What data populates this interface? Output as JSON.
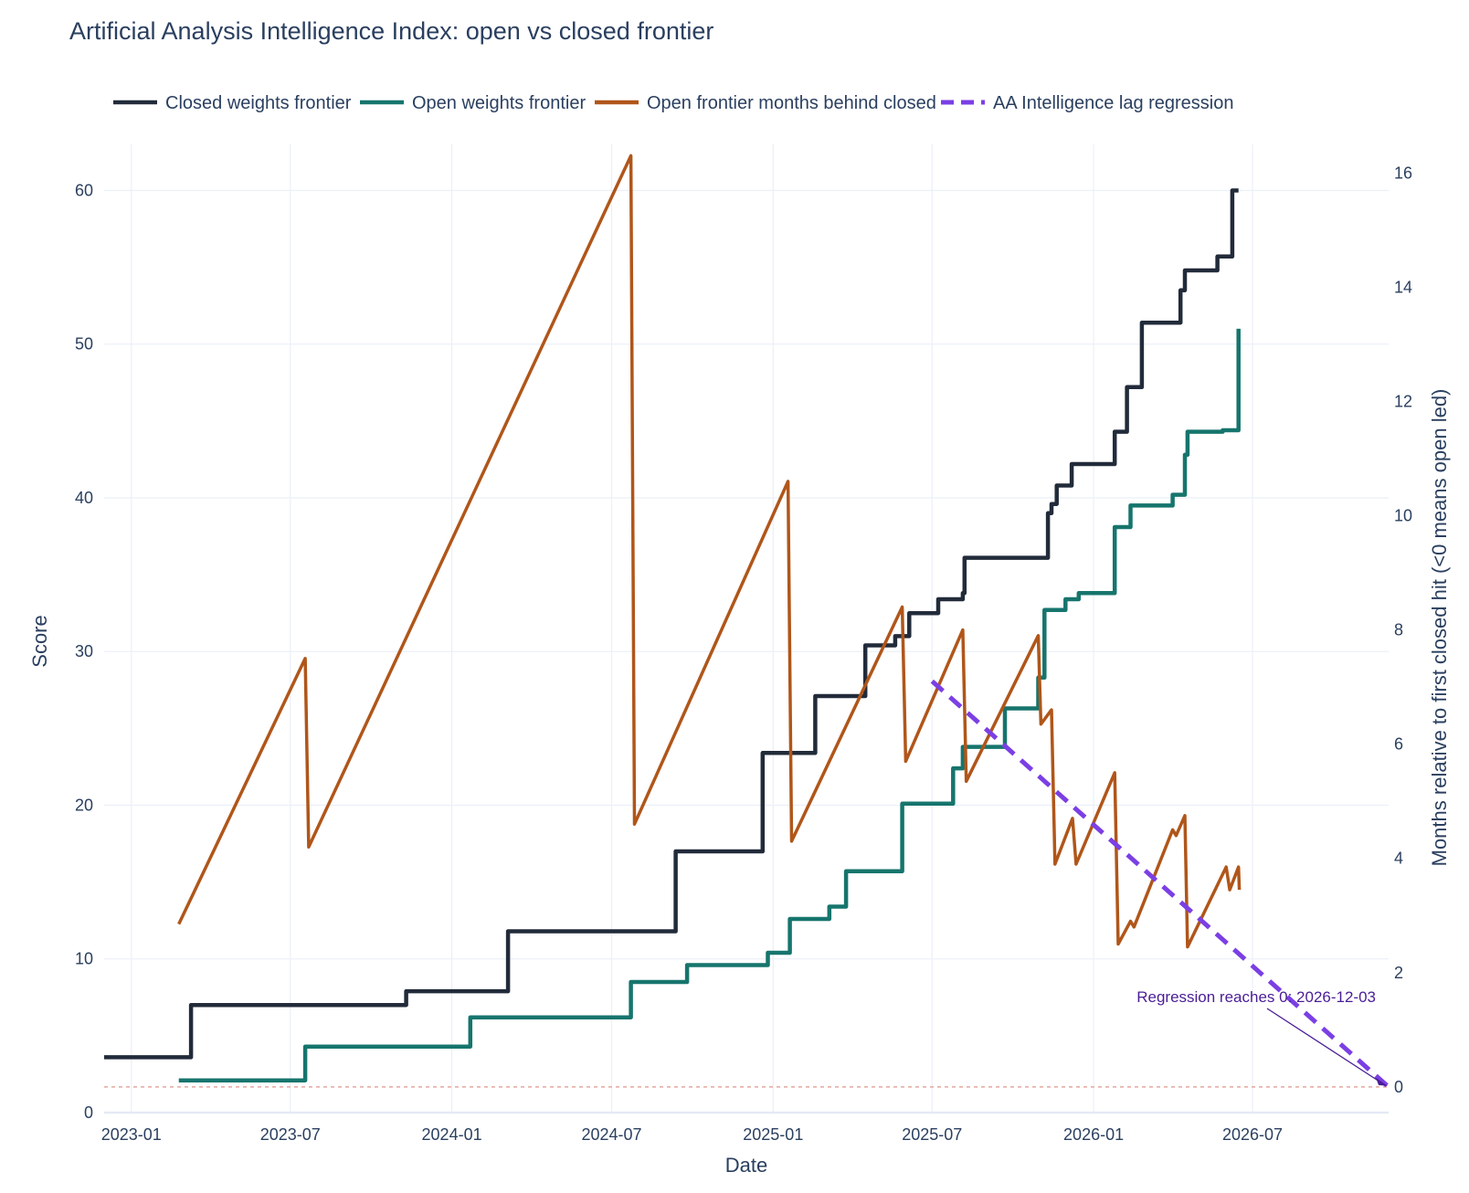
{
  "chart_data": {
    "type": "line",
    "title": "Artificial Analysis Intelligence Index: open vs closed frontier",
    "xlabel": "Date",
    "ylabel": "Score",
    "y2label": "Months relative to first closed hit (<0 means open led)",
    "xrange": [
      "2022-12-01",
      "2026-12-03"
    ],
    "ylim": [
      0,
      63
    ],
    "y2lim": [
      -0.45,
      16.5
    ],
    "x_ticks": [
      "2023-01",
      "2023-07",
      "2024-01",
      "2024-07",
      "2025-01",
      "2025-07",
      "2026-01",
      "2026-07"
    ],
    "y_ticks": [
      0,
      10,
      20,
      30,
      40,
      50,
      60
    ],
    "y2_ticks": [
      0,
      2,
      4,
      6,
      8,
      10,
      12,
      14,
      16
    ],
    "grid": true,
    "legend": "top",
    "series": [
      {
        "name": "Closed weights frontier",
        "axis": "left",
        "shape": "step",
        "color": "#222b3a",
        "points": [
          [
            "2022-12-01",
            3.6
          ],
          [
            "2023-03-10",
            3.6
          ],
          [
            "2023-03-10",
            7.0
          ],
          [
            "2023-11-10",
            7.0
          ],
          [
            "2023-11-10",
            7.9
          ],
          [
            "2024-03-05",
            7.9
          ],
          [
            "2024-03-05",
            11.8
          ],
          [
            "2024-09-12",
            11.8
          ],
          [
            "2024-09-12",
            17.0
          ],
          [
            "2024-12-20",
            17.0
          ],
          [
            "2024-12-20",
            23.4
          ],
          [
            "2025-02-18",
            23.4
          ],
          [
            "2025-02-18",
            27.1
          ],
          [
            "2025-04-16",
            27.1
          ],
          [
            "2025-04-16",
            30.4
          ],
          [
            "2025-05-20",
            30.4
          ],
          [
            "2025-05-20",
            31.0
          ],
          [
            "2025-06-05",
            31.0
          ],
          [
            "2025-06-05",
            32.5
          ],
          [
            "2025-07-08",
            32.5
          ],
          [
            "2025-07-08",
            33.4
          ],
          [
            "2025-08-05",
            33.4
          ],
          [
            "2025-08-05",
            33.8
          ],
          [
            "2025-08-07",
            33.8
          ],
          [
            "2025-08-07",
            36.1
          ],
          [
            "2025-11-10",
            36.1
          ],
          [
            "2025-11-10",
            39.0
          ],
          [
            "2025-11-14",
            39.0
          ],
          [
            "2025-11-14",
            39.6
          ],
          [
            "2025-11-20",
            39.6
          ],
          [
            "2025-11-20",
            40.8
          ],
          [
            "2025-12-07",
            40.8
          ],
          [
            "2025-12-07",
            42.2
          ],
          [
            "2026-01-25",
            42.2
          ],
          [
            "2026-01-25",
            44.3
          ],
          [
            "2026-02-08",
            44.3
          ],
          [
            "2026-02-08",
            47.2
          ],
          [
            "2026-02-25",
            47.2
          ],
          [
            "2026-02-25",
            51.4
          ],
          [
            "2026-04-10",
            51.4
          ],
          [
            "2026-04-10",
            53.5
          ],
          [
            "2026-04-15",
            53.5
          ],
          [
            "2026-04-15",
            54.8
          ],
          [
            "2026-05-22",
            54.8
          ],
          [
            "2026-05-22",
            55.7
          ],
          [
            "2026-06-08",
            55.7
          ],
          [
            "2026-06-08",
            60.0
          ],
          [
            "2026-06-15",
            60.0
          ]
        ]
      },
      {
        "name": "Open weights frontier",
        "axis": "left",
        "shape": "step",
        "color": "#16756d",
        "points": [
          [
            "2023-02-24",
            2.1
          ],
          [
            "2023-07-18",
            2.1
          ],
          [
            "2023-07-18",
            4.3
          ],
          [
            "2024-01-22",
            4.3
          ],
          [
            "2024-01-22",
            6.2
          ],
          [
            "2024-07-23",
            6.2
          ],
          [
            "2024-07-23",
            8.5
          ],
          [
            "2024-09-25",
            8.5
          ],
          [
            "2024-09-25",
            9.6
          ],
          [
            "2024-12-26",
            9.6
          ],
          [
            "2024-12-26",
            10.4
          ],
          [
            "2025-01-20",
            10.4
          ],
          [
            "2025-01-20",
            12.6
          ],
          [
            "2025-03-06",
            12.6
          ],
          [
            "2025-03-06",
            13.4
          ],
          [
            "2025-03-25",
            13.4
          ],
          [
            "2025-03-25",
            15.7
          ],
          [
            "2025-05-28",
            15.7
          ],
          [
            "2025-05-28",
            20.1
          ],
          [
            "2025-07-25",
            20.1
          ],
          [
            "2025-07-25",
            22.4
          ],
          [
            "2025-08-05",
            22.4
          ],
          [
            "2025-08-05",
            23.8
          ],
          [
            "2025-09-22",
            23.8
          ],
          [
            "2025-09-22",
            26.3
          ],
          [
            "2025-10-30",
            26.3
          ],
          [
            "2025-10-30",
            28.3
          ],
          [
            "2025-11-06",
            28.3
          ],
          [
            "2025-11-06",
            32.7
          ],
          [
            "2025-11-30",
            32.7
          ],
          [
            "2025-11-30",
            33.4
          ],
          [
            "2025-12-15",
            33.4
          ],
          [
            "2025-12-15",
            33.8
          ],
          [
            "2026-01-25",
            33.8
          ],
          [
            "2026-01-25",
            38.1
          ],
          [
            "2026-02-12",
            38.1
          ],
          [
            "2026-02-12",
            39.5
          ],
          [
            "2026-04-01",
            39.5
          ],
          [
            "2026-04-01",
            40.2
          ],
          [
            "2026-04-15",
            40.2
          ],
          [
            "2026-04-15",
            42.8
          ],
          [
            "2026-04-18",
            42.8
          ],
          [
            "2026-04-18",
            44.3
          ],
          [
            "2026-05-28",
            44.3
          ],
          [
            "2026-05-28",
            44.4
          ],
          [
            "2026-06-15",
            44.4
          ],
          [
            "2026-06-15",
            51.0
          ]
        ]
      },
      {
        "name": "Open frontier months behind closed",
        "axis": "right",
        "shape": "linear",
        "color": "#b0561a",
        "points": [
          [
            "2023-02-24",
            2.85
          ],
          [
            "2023-07-18",
            7.5
          ],
          [
            "2023-07-22",
            4.2
          ],
          [
            "2024-07-23",
            16.3
          ],
          [
            "2024-07-27",
            4.6
          ],
          [
            "2025-01-18",
            10.6
          ],
          [
            "2025-01-22",
            4.3
          ],
          [
            "2025-05-28",
            8.4
          ],
          [
            "2025-06-01",
            5.7
          ],
          [
            "2025-08-05",
            8.0
          ],
          [
            "2025-08-09",
            5.35
          ],
          [
            "2025-10-30",
            7.9
          ],
          [
            "2025-11-02",
            6.35
          ],
          [
            "2025-11-14",
            6.6
          ],
          [
            "2025-11-18",
            3.9
          ],
          [
            "2025-12-08",
            4.7
          ],
          [
            "2025-12-12",
            3.9
          ],
          [
            "2026-01-25",
            5.5
          ],
          [
            "2026-01-29",
            2.5
          ],
          [
            "2026-02-12",
            2.9
          ],
          [
            "2026-02-16",
            2.8
          ],
          [
            "2026-04-01",
            4.5
          ],
          [
            "2026-04-05",
            4.4
          ],
          [
            "2026-04-15",
            4.75
          ],
          [
            "2026-04-18",
            2.45
          ],
          [
            "2026-06-01",
            3.85
          ],
          [
            "2026-06-05",
            3.45
          ],
          [
            "2026-06-15",
            3.85
          ],
          [
            "2026-06-16",
            3.45
          ]
        ]
      },
      {
        "name": "AA Intelligence lag regression",
        "axis": "right",
        "shape": "dashed",
        "color": "#7b3fe4",
        "points": [
          [
            "2025-07-01",
            7.1
          ],
          [
            "2026-12-03",
            0.0
          ]
        ]
      }
    ],
    "reference_line": {
      "axis": "right",
      "y": 0,
      "color": "#e3a8a0",
      "style": "dotted"
    },
    "annotations": [
      {
        "text": "Regression reaches 0: 2026-12-03",
        "x": "2026-12-03",
        "y": 0,
        "axis": "right",
        "color": "#4a1d96"
      }
    ]
  }
}
